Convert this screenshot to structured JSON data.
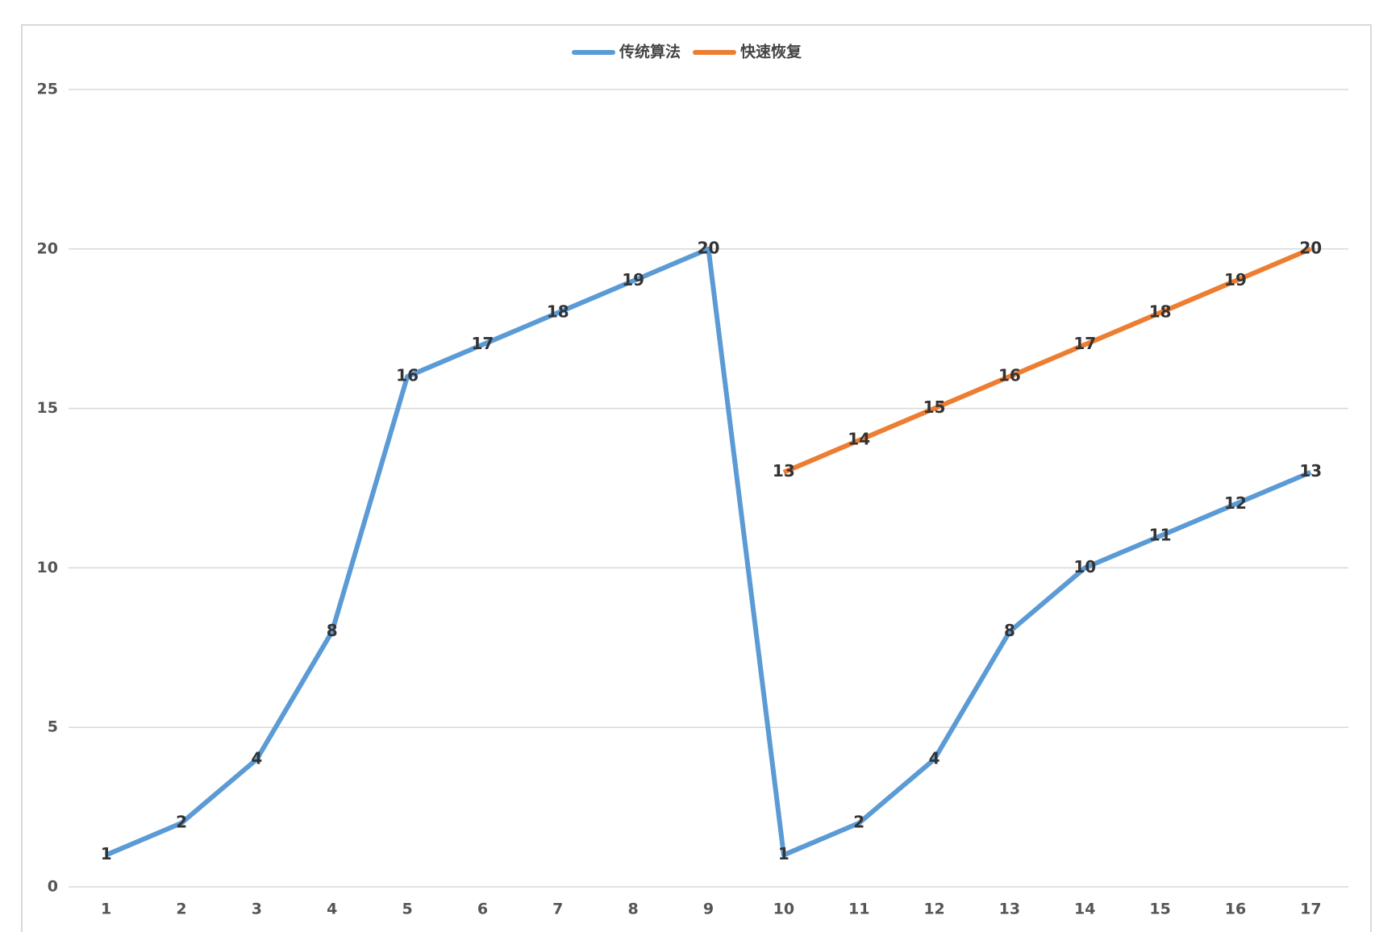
{
  "chart_data": {
    "type": "line",
    "categories": [
      "1",
      "2",
      "3",
      "4",
      "5",
      "6",
      "7",
      "8",
      "9",
      "10",
      "11",
      "12",
      "13",
      "14",
      "15",
      "16",
      "17"
    ],
    "series": [
      {
        "name": "传统算法",
        "color": "#5b9bd5",
        "values": [
          1,
          2,
          4,
          8,
          16,
          17,
          18,
          19,
          20,
          1,
          2,
          4,
          8,
          10,
          11,
          12,
          13
        ]
      },
      {
        "name": "快速恢复",
        "color": "#ed7d31",
        "values": [
          null,
          null,
          null,
          null,
          null,
          null,
          null,
          null,
          null,
          13,
          14,
          15,
          16,
          17,
          18,
          19,
          20
        ]
      }
    ],
    "ylim": [
      0,
      25
    ],
    "yticks": [
      0,
      5,
      10,
      15,
      20,
      25
    ],
    "grid": true,
    "legend": "top"
  }
}
